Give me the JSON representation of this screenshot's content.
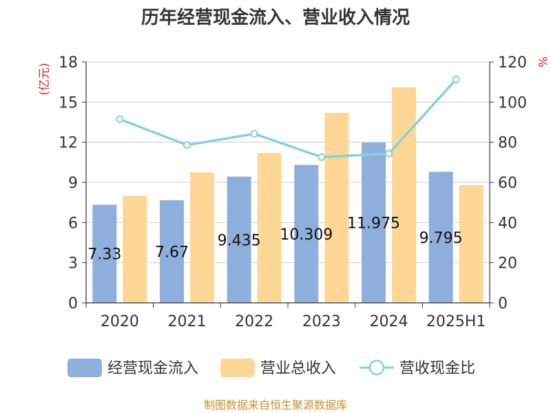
{
  "chart_data": {
    "type": "bar",
    "title": "历年经营现金流入、营业收入情况",
    "categories": [
      "2020",
      "2021",
      "2022",
      "2023",
      "2024",
      "2025H1"
    ],
    "y_left": {
      "unit": "(亿元)",
      "ylim": [
        0,
        18
      ],
      "ticks": [
        "0",
        "3",
        "6",
        "9",
        "12",
        "15",
        "18"
      ]
    },
    "y_right": {
      "unit": "%",
      "ylim": [
        0,
        120
      ],
      "ticks": [
        "0",
        "20",
        "40",
        "60",
        "80",
        "100",
        "120"
      ]
    },
    "series": [
      {
        "name": "经营现金流入",
        "type": "bar",
        "axis": "left",
        "color": "#8eaedb",
        "values": [
          7.33,
          7.67,
          9.435,
          10.309,
          11.975,
          9.795
        ],
        "labels": [
          "7.33",
          "7.67",
          "9.435",
          "10.309",
          "11.975",
          "9.795"
        ]
      },
      {
        "name": "营业总收入",
        "type": "bar",
        "axis": "left",
        "color": "#fed797",
        "values": [
          8.0,
          9.75,
          11.2,
          14.2,
          16.1,
          8.8
        ]
      },
      {
        "name": "营收现金比",
        "type": "line",
        "axis": "right",
        "color": "#86d2d6",
        "values": [
          91.5,
          78.6,
          84.2,
          72.6,
          74.3,
          111.3
        ]
      }
    ],
    "grid": true,
    "legend_position": "bottom"
  },
  "source": "制图数据来自恒生聚源数据库"
}
